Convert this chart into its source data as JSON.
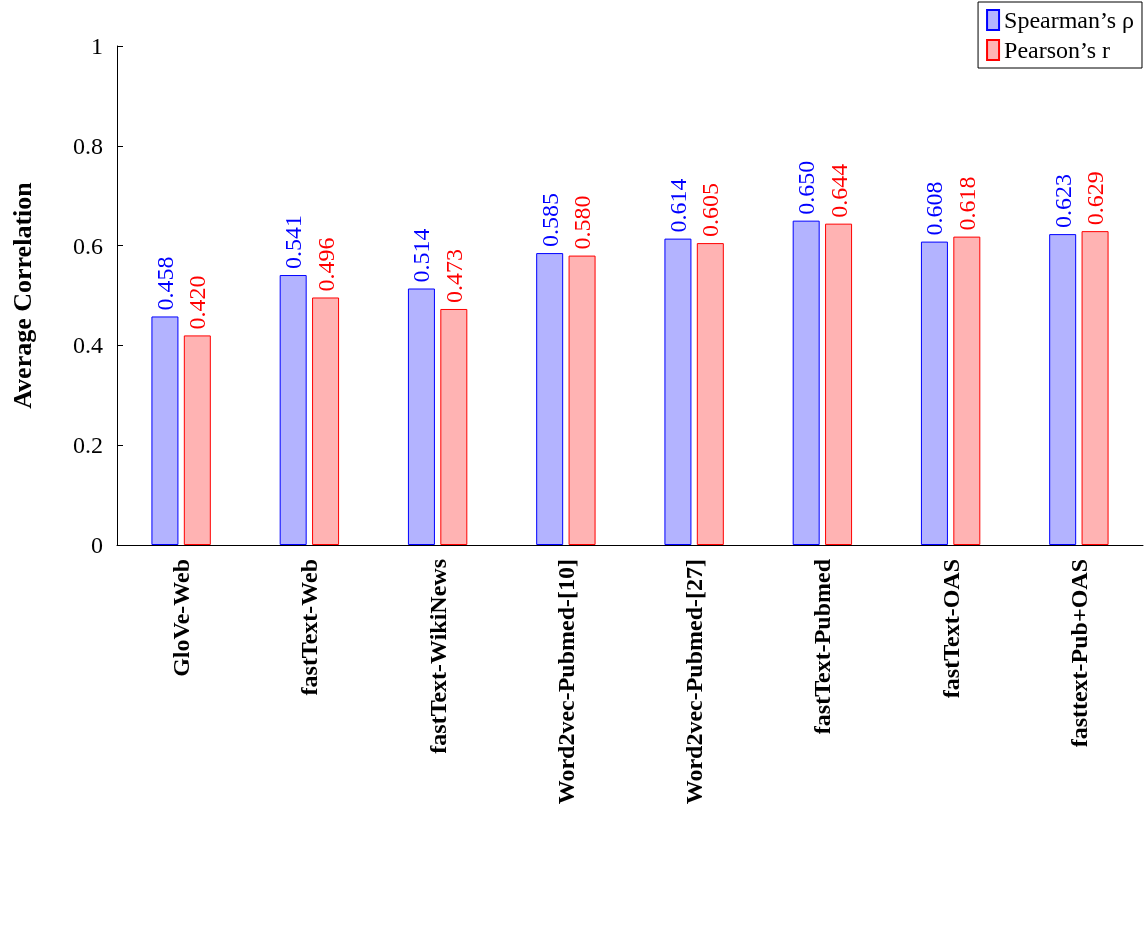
{
  "chart_data": {
    "type": "bar",
    "ylabel": "Average Correlation",
    "categories": [
      "GloVe-Web",
      "fastText-Web",
      "fastText-WikiNews",
      "Word2vec-Pubmed-[10]",
      "Word2vec-Pubmed-[27]",
      "fastText-Pubmed",
      "fastText-OAS",
      "fasttext-Pub+OAS"
    ],
    "series": [
      {
        "name": "Spearman’s ρ",
        "color": "#0000ff",
        "values": [
          0.458,
          0.541,
          0.514,
          0.585,
          0.614,
          0.65,
          0.608,
          0.623
        ],
        "value_labels": [
          "0.458",
          "0.541",
          "0.514",
          "0.585",
          "0.614",
          "0.650",
          "0.608",
          "0.623"
        ]
      },
      {
        "name": "Pearson’s r",
        "color": "#ff0000",
        "values": [
          0.42,
          0.496,
          0.473,
          0.58,
          0.605,
          0.644,
          0.618,
          0.629
        ],
        "value_labels": [
          "0.420",
          "0.496",
          "0.473",
          "0.580",
          "0.605",
          "0.644",
          "0.618",
          "0.629"
        ]
      }
    ],
    "ylim": [
      0,
      1
    ],
    "yticks": [
      0,
      0.2,
      0.4,
      0.6,
      0.8,
      1
    ],
    "grid": false,
    "legend": "top right"
  }
}
